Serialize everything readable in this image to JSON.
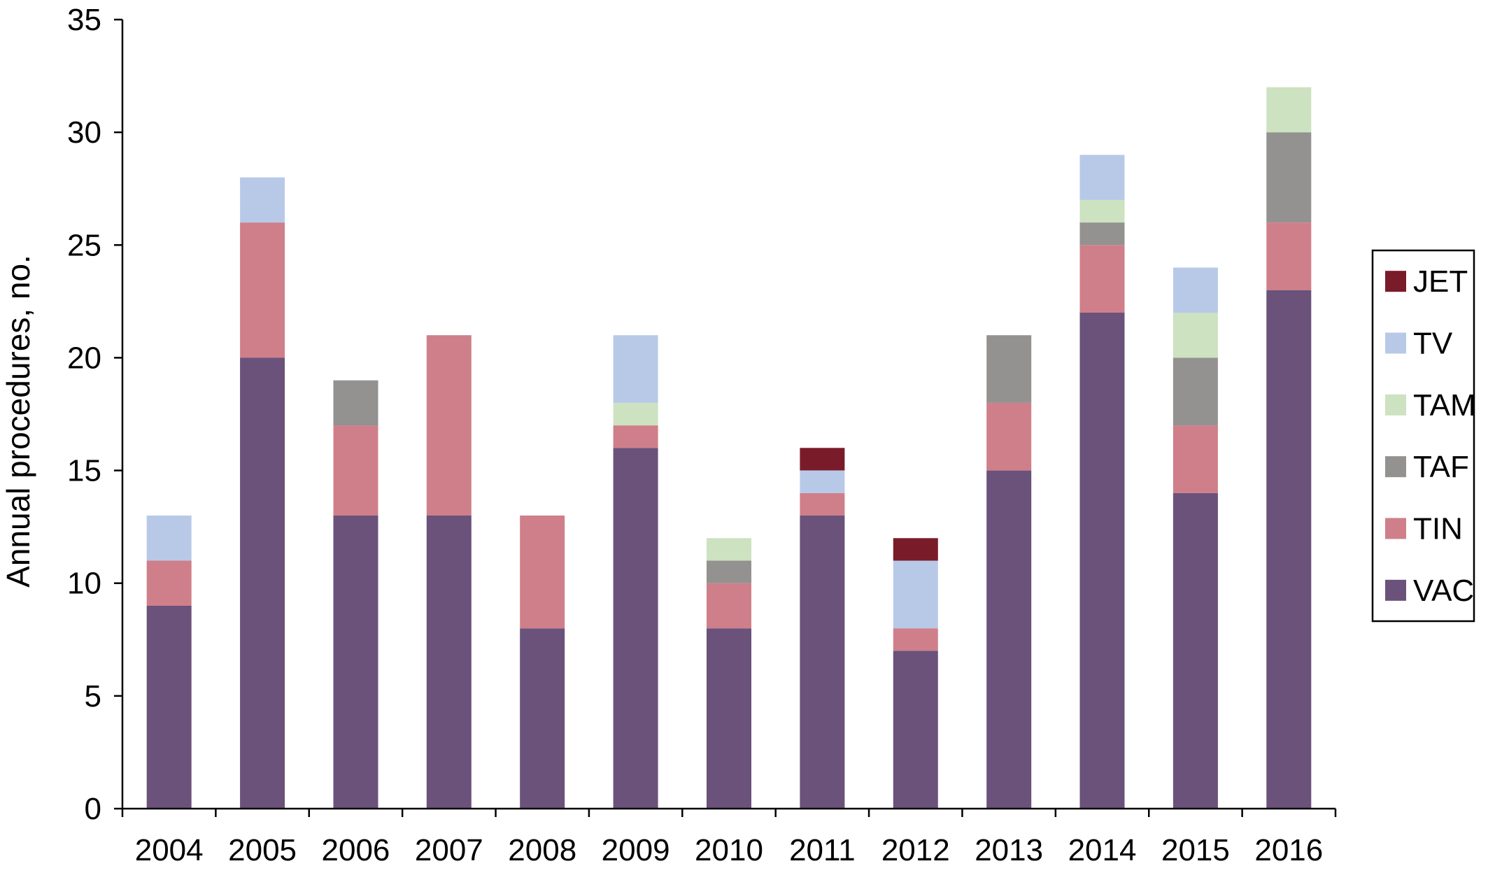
{
  "chart_data": {
    "type": "bar",
    "stacked": true,
    "title": "",
    "xlabel": "",
    "ylabel": "Annual procedures, no.",
    "ylim": [
      0,
      35
    ],
    "yticks": [
      0,
      5,
      10,
      15,
      20,
      25,
      30,
      35
    ],
    "grid": false,
    "legend_position": "right",
    "categories": [
      "2004",
      "2005",
      "2006",
      "2007",
      "2008",
      "2009",
      "2010",
      "2011",
      "2012",
      "2013",
      "2014",
      "2015",
      "2016"
    ],
    "series": [
      {
        "name": "VAC",
        "color": "#6a527b",
        "values": [
          9,
          20,
          13,
          13,
          8,
          16,
          8,
          13,
          7,
          15,
          22,
          14,
          23
        ]
      },
      {
        "name": "TIN",
        "color": "#cf7f89",
        "values": [
          2,
          6,
          4,
          8,
          5,
          1,
          2,
          1,
          1,
          3,
          3,
          3,
          3
        ]
      },
      {
        "name": "TAF",
        "color": "#939290",
        "values": [
          0,
          0,
          2,
          0,
          0,
          0,
          1,
          0,
          0,
          3,
          1,
          3,
          4
        ]
      },
      {
        "name": "TAM",
        "color": "#cde2c0",
        "values": [
          0,
          0,
          0,
          0,
          0,
          1,
          1,
          0,
          0,
          0,
          1,
          2,
          2
        ]
      },
      {
        "name": "TV",
        "color": "#b8c9e8",
        "values": [
          2,
          2,
          0,
          0,
          0,
          3,
          0,
          1,
          3,
          0,
          2,
          2,
          0
        ]
      },
      {
        "name": "JET",
        "color": "#7a1b2a",
        "values": [
          0,
          0,
          0,
          0,
          0,
          0,
          0,
          1,
          1,
          0,
          0,
          0,
          0
        ]
      }
    ],
    "legend_order": [
      "JET",
      "TV",
      "TAM",
      "TAF",
      "TIN",
      "VAC"
    ]
  }
}
